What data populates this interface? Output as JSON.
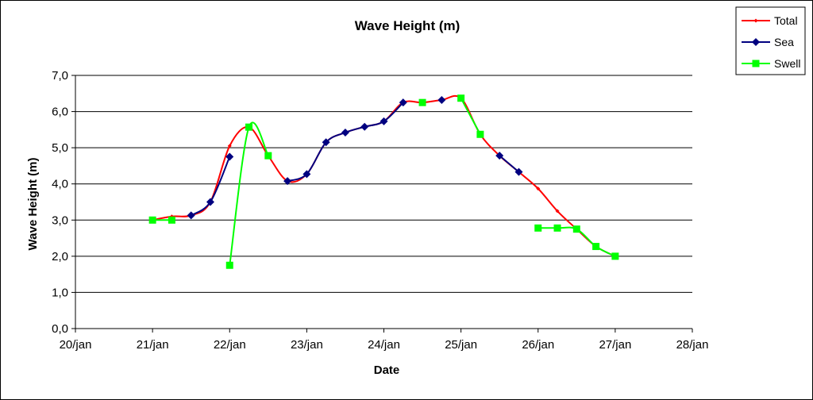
{
  "chart_data": {
    "type": "line",
    "title": "Wave Height (m)",
    "xlabel": "Date",
    "ylabel": "Wave Height (m)",
    "xlim": [
      20,
      28
    ],
    "ylim": [
      0,
      7
    ],
    "x_ticks": [
      20,
      21,
      22,
      23,
      24,
      25,
      26,
      27,
      28
    ],
    "x_tick_labels": [
      "20/jan",
      "21/jan",
      "22/jan",
      "23/jan",
      "24/jan",
      "25/jan",
      "26/jan",
      "27/jan",
      "28/jan"
    ],
    "y_ticks": [
      0,
      1,
      2,
      3,
      4,
      5,
      6,
      7
    ],
    "y_tick_labels": [
      "0,0",
      "1,0",
      "2,0",
      "3,0",
      "4,0",
      "5,0",
      "6,0",
      "7,0"
    ],
    "grid": "horizontal",
    "legend_position": "top-right",
    "series": [
      {
        "name": "Total",
        "color": "#ff0000",
        "marker": "small-diamond",
        "x": [
          21.0,
          21.25,
          21.5,
          21.75,
          22.0,
          22.25,
          22.5,
          22.75,
          23.0,
          23.25,
          23.5,
          23.75,
          24.0,
          24.25,
          24.5,
          24.75,
          25.0,
          25.25,
          25.5,
          25.75,
          26.0,
          26.25,
          26.5,
          26.75,
          27.0
        ],
        "y": [
          3.0,
          3.1,
          3.13,
          3.5,
          5.05,
          5.57,
          4.78,
          4.08,
          4.27,
          5.15,
          5.42,
          5.58,
          5.73,
          6.25,
          6.25,
          6.32,
          6.37,
          5.37,
          4.78,
          4.33,
          3.87,
          3.25,
          2.75,
          2.27,
          2.0
        ]
      },
      {
        "name": "Sea",
        "color": "#000080",
        "marker": "diamond",
        "x": [
          21.5,
          21.75,
          22.0,
          null,
          22.75,
          23.0,
          23.25,
          23.5,
          23.75,
          24.0,
          24.25,
          null,
          24.75,
          null,
          25.5,
          25.75
        ],
        "y": [
          3.13,
          3.5,
          4.75,
          null,
          4.08,
          4.27,
          5.15,
          5.42,
          5.58,
          5.73,
          6.25,
          null,
          6.32,
          null,
          4.78,
          4.33
        ]
      },
      {
        "name": "Swell",
        "color": "#00ff00",
        "marker": "square",
        "x": [
          21.0,
          21.25,
          null,
          22.0,
          22.25,
          22.5,
          null,
          24.5,
          null,
          25.0,
          25.25,
          null,
          26.0,
          26.25,
          26.5,
          26.75,
          27.0
        ],
        "y": [
          3.0,
          3.0,
          null,
          1.75,
          5.57,
          4.78,
          null,
          6.25,
          null,
          6.37,
          5.37,
          null,
          2.78,
          2.78,
          2.75,
          2.27,
          2.0
        ]
      }
    ]
  }
}
